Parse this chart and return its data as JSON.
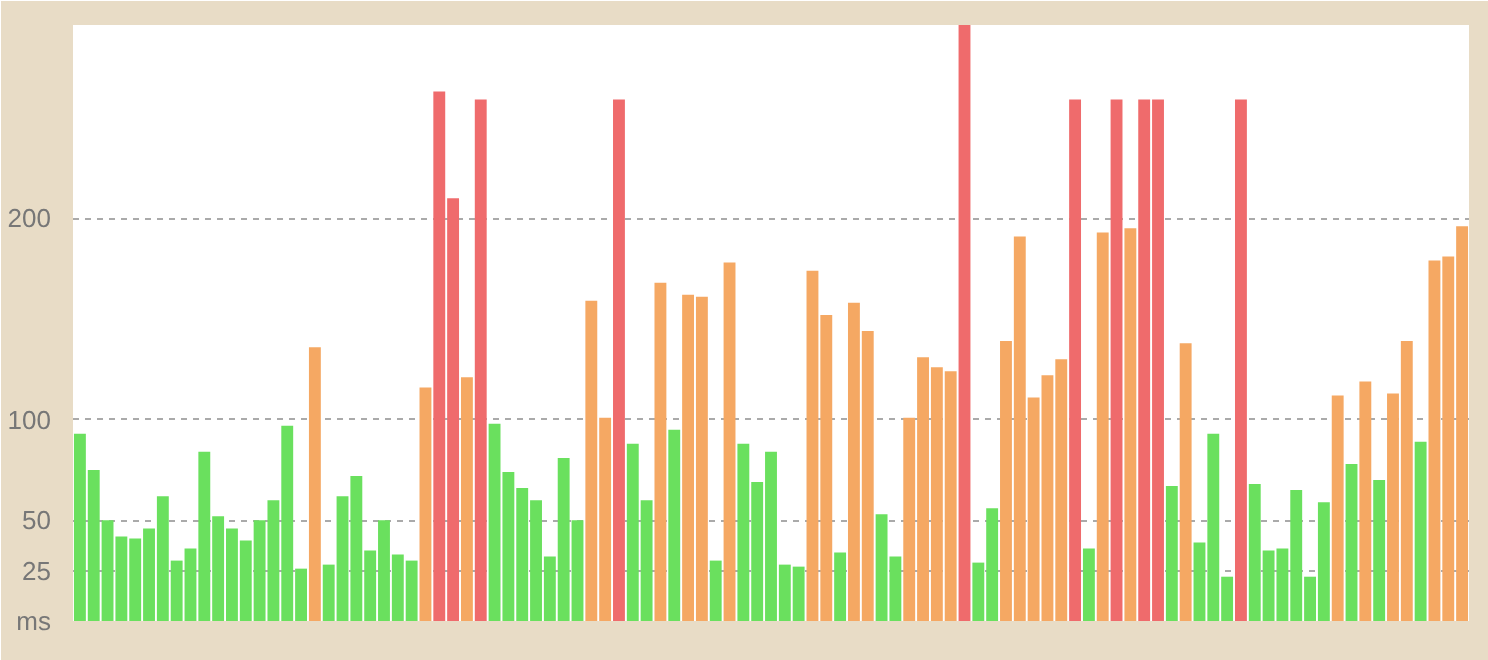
{
  "chart_data": {
    "type": "bar",
    "categories": [
      null,
      null,
      null,
      null,
      null,
      null,
      null,
      null,
      null,
      null,
      null,
      null,
      null,
      null,
      null,
      null,
      null,
      null,
      null,
      null,
      null,
      null,
      null,
      null,
      null,
      null,
      null,
      null,
      null,
      null,
      null,
      null,
      null,
      null,
      null,
      null,
      null,
      null,
      null,
      null,
      null,
      null,
      null,
      null,
      null,
      null,
      null,
      null,
      null,
      null,
      null,
      null,
      null,
      null,
      null,
      null,
      null,
      null,
      null,
      null,
      null,
      null,
      null,
      null,
      null,
      null,
      null,
      null,
      null,
      null,
      null,
      null,
      null,
      null,
      null,
      null,
      null,
      null,
      null,
      null,
      null,
      null,
      null,
      null,
      null,
      null,
      null,
      null,
      null,
      null,
      null,
      null,
      null,
      null,
      null,
      null,
      null,
      null,
      null,
      null,
      null
    ],
    "values": [
      93,
      75,
      50,
      42,
      41,
      46,
      62,
      30,
      36,
      84,
      52,
      46,
      40,
      50,
      60,
      97,
      26,
      136,
      28,
      62,
      72,
      35,
      50,
      33,
      30,
      116,
      263,
      210,
      121,
      259,
      98,
      74,
      66,
      60,
      32,
      81,
      50,
      159,
      101,
      259,
      88,
      60,
      168,
      95,
      162,
      161,
      30,
      178,
      88,
      69,
      84,
      28,
      27,
      174,
      152,
      34,
      158,
      144,
      53,
      32,
      101,
      131,
      126,
      124,
      296,
      29,
      56,
      139,
      191,
      111,
      122,
      130,
      259,
      36,
      193,
      259,
      195,
      259,
      259,
      67,
      138,
      39,
      93,
      22,
      259,
      68,
      35,
      36,
      65,
      22,
      59,
      112,
      78,
      119,
      70,
      113,
      139,
      89,
      179,
      181,
      196
    ],
    "colors": [
      "#6ae05e",
      "#6ae05e",
      "#6ae05e",
      "#6ae05e",
      "#6ae05e",
      "#6ae05e",
      "#6ae05e",
      "#6ae05e",
      "#6ae05e",
      "#6ae05e",
      "#6ae05e",
      "#6ae05e",
      "#6ae05e",
      "#6ae05e",
      "#6ae05e",
      "#6ae05e",
      "#6ae05e",
      "#f5a863",
      "#6ae05e",
      "#6ae05e",
      "#6ae05e",
      "#6ae05e",
      "#6ae05e",
      "#6ae05e",
      "#6ae05e",
      "#f5a863",
      "#ef6b6c",
      "#ef6b6c",
      "#f5a863",
      "#ef6b6c",
      "#6ae05e",
      "#6ae05e",
      "#6ae05e",
      "#6ae05e",
      "#6ae05e",
      "#6ae05e",
      "#6ae05e",
      "#f5a863",
      "#f5a863",
      "#ef6b6c",
      "#6ae05e",
      "#6ae05e",
      "#f5a863",
      "#6ae05e",
      "#f5a863",
      "#f5a863",
      "#6ae05e",
      "#f5a863",
      "#6ae05e",
      "#6ae05e",
      "#6ae05e",
      "#6ae05e",
      "#6ae05e",
      "#f5a863",
      "#f5a863",
      "#6ae05e",
      "#f5a863",
      "#f5a863",
      "#6ae05e",
      "#6ae05e",
      "#f5a863",
      "#f5a863",
      "#f5a863",
      "#f5a863",
      "#ef6b6c",
      "#6ae05e",
      "#6ae05e",
      "#f5a863",
      "#f5a863",
      "#f5a863",
      "#f5a863",
      "#f5a863",
      "#ef6b6c",
      "#6ae05e",
      "#f5a863",
      "#ef6b6c",
      "#f5a863",
      "#ef6b6c",
      "#ef6b6c",
      "#6ae05e",
      "#f5a863",
      "#6ae05e",
      "#6ae05e",
      "#6ae05e",
      "#ef6b6c",
      "#6ae05e",
      "#6ae05e",
      "#6ae05e",
      "#6ae05e",
      "#6ae05e",
      "#6ae05e",
      "#f5a863",
      "#6ae05e",
      "#f5a863",
      "#6ae05e",
      "#f5a863",
      "#f5a863",
      "#6ae05e",
      "#f5a863",
      "#f5a863",
      "#f5a863"
    ],
    "ylim": [
      0,
      296
    ],
    "yticks": [
      {
        "value": 0,
        "label": "ms"
      },
      25,
      50,
      100,
      200
    ],
    "grid": "y",
    "tick_labels": "y"
  }
}
